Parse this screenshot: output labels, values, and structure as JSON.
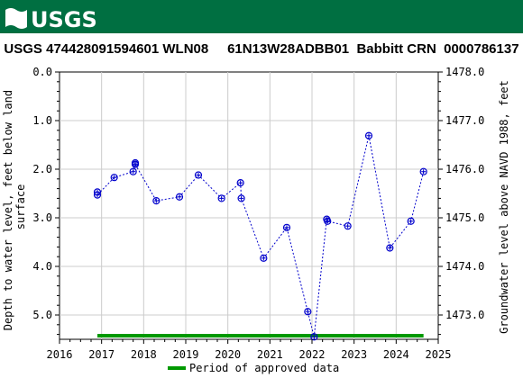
{
  "header": {
    "logo_text": "USGS",
    "title": "USGS 474428091594601 WLN08     61N13W28ADBB01  Babbitt CRN  0000786137",
    "banner_color": "#006f41"
  },
  "chart_data": {
    "type": "scatter",
    "title": "USGS 474428091594601 WLN08     61N13W28ADBB01  Babbitt CRN  0000786137",
    "ylabel_left": "Depth to water level, feet below land surface",
    "ylabel_right": "Groundwater level above NAVD 1988, feet",
    "xlim": [
      2016.0,
      2025.0
    ],
    "ylim_left": [
      0.0,
      5.5
    ],
    "ylim_right": [
      1478.0,
      1472.5
    ],
    "x_ticks": [
      2016,
      2017,
      2018,
      2019,
      2020,
      2021,
      2022,
      2023,
      2024,
      2025
    ],
    "x_tick_labels": [
      "2016",
      "2017",
      "2018",
      "2019",
      "2020",
      "2021",
      "2022",
      "2023",
      "2024",
      "2025"
    ],
    "y_ticks_left": [
      0.0,
      1.0,
      2.0,
      3.0,
      4.0,
      5.0
    ],
    "y_tick_labels_left": [
      "0.0",
      "1.0",
      "2.0",
      "3.0",
      "4.0",
      "5.0"
    ],
    "y_ticks_right": [
      1478.0,
      1477.0,
      1476.0,
      1475.0,
      1474.0,
      1473.0
    ],
    "y_tick_labels_right": [
      "1478.0",
      "1477.0",
      "1476.0",
      "1475.0",
      "1474.0",
      "1473.0"
    ],
    "grid": true,
    "series": [
      {
        "name": "Depth to water level",
        "color": "#0000cc",
        "x": [
          2016.9,
          2016.9,
          2017.3,
          2017.75,
          2017.8,
          2017.8,
          2018.3,
          2018.85,
          2019.3,
          2019.85,
          2020.3,
          2020.32,
          2020.85,
          2021.4,
          2021.9,
          2022.05,
          2022.35,
          2022.37,
          2022.85,
          2023.35,
          2023.85,
          2024.35,
          2024.65
        ],
        "values": [
          2.47,
          2.53,
          2.17,
          2.05,
          1.87,
          1.9,
          2.65,
          2.57,
          2.12,
          2.6,
          2.28,
          2.6,
          3.83,
          3.2,
          4.93,
          5.45,
          3.03,
          3.07,
          3.17,
          1.31,
          3.62,
          3.07,
          2.05
        ]
      }
    ],
    "approved_period": {
      "name": "Period of approved data",
      "color": "#009900",
      "start": 2016.9,
      "end": 2024.65
    },
    "legend_position": "bottom-center"
  }
}
